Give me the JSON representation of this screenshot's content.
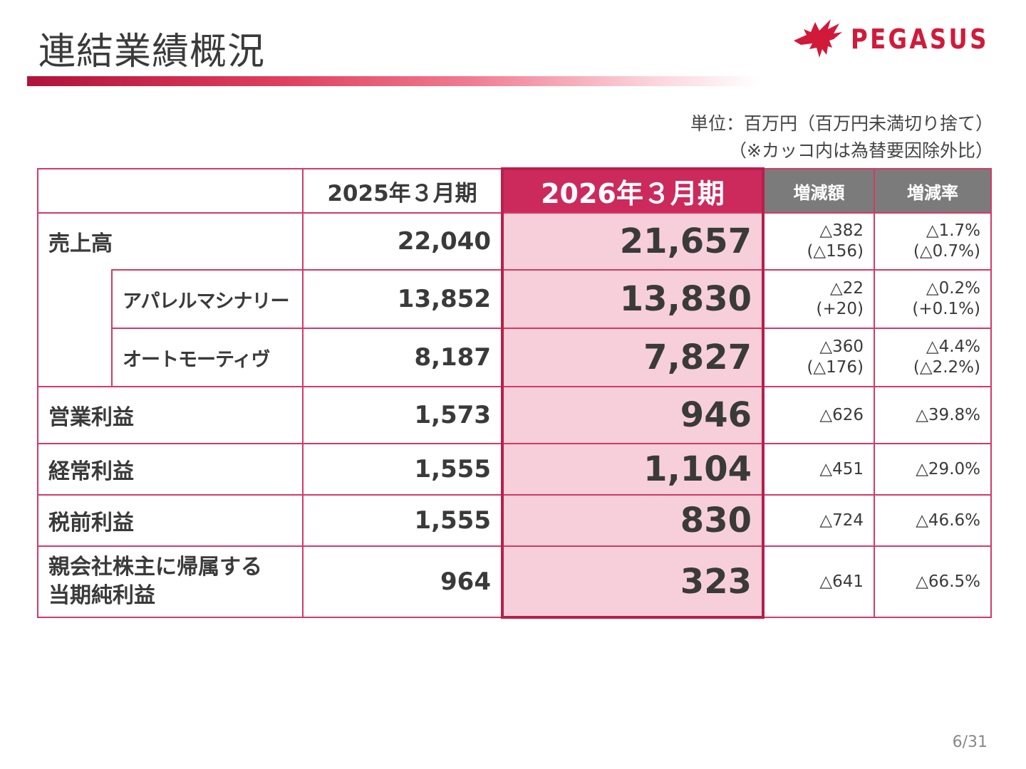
{
  "title": "連結業績概況",
  "logo": {
    "text": "PEGASUS",
    "icon": "pegasus-icon",
    "color": "#d11a3a"
  },
  "unit_note": {
    "line1": "単位：百万円（百万円未満切り捨て）",
    "line2": "（※カッコ内は為替要因除外比）"
  },
  "table": {
    "headers": {
      "blank": "",
      "prev": "2025年３月期",
      "cur": "2026年３月期",
      "diff": "増減額",
      "rate": "増減率"
    },
    "rows": [
      {
        "label": "売上高",
        "prev": "22,040",
        "cur": "21,657",
        "diff": "△382",
        "diff_sub": "(△156)",
        "rate": "△1.7%",
        "rate_sub": "(△0.7%)"
      },
      {
        "label": "アパレルマシナリー",
        "prev": "13,852",
        "cur": "13,830",
        "diff": "△22",
        "diff_sub": "(+20)",
        "rate": "△0.2%",
        "rate_sub": "(+0.1%)"
      },
      {
        "label": "オートモーティヴ",
        "prev": "8,187",
        "cur": "7,827",
        "diff": "△360",
        "diff_sub": "(△176)",
        "rate": "△4.4%",
        "rate_sub": "(△2.2%)"
      },
      {
        "label": "営業利益",
        "prev": "1,573",
        "cur": "946",
        "diff": "△626",
        "rate": "△39.8%"
      },
      {
        "label": "経常利益",
        "prev": "1,555",
        "cur": "1,104",
        "diff": "△451",
        "rate": "△29.0%"
      },
      {
        "label": "税前利益",
        "prev": "1,555",
        "cur": "830",
        "diff": "△724",
        "rate": "△46.6%"
      },
      {
        "label_line1": "親会社株主に帰属する",
        "label_line2": "当期純利益",
        "prev": "964",
        "cur": "323",
        "diff": "△641",
        "rate": "△66.5%"
      }
    ]
  },
  "page_number": "6/31",
  "colors": {
    "accent": "#cc2a5c",
    "highlight": "#f6cfda",
    "gray_header": "#7b7b7b"
  }
}
